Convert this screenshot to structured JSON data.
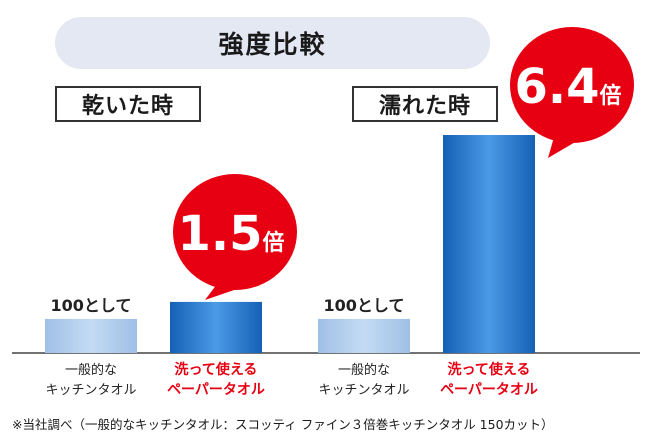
{
  "title": "強度比較",
  "footnote": "※当社調べ（一般的なキッチンタオル：スコッティ ファイン３倍巻キッチンタオル 150カット）",
  "colors": {
    "generic": "#a9c6e8",
    "product": "#1c6fc4",
    "callout": "#e60012",
    "callout_text": "#ffffff",
    "product_label": "#e60012"
  },
  "chart_data": {
    "type": "bar",
    "groups": [
      {
        "label": "乾いた時",
        "bars": [
          {
            "category": [
              "一般的な",
              "キッチンタオル"
            ],
            "value": 100,
            "label": "100として",
            "highlight": false
          },
          {
            "category": [
              "洗って使える",
              "ペーパータオル"
            ],
            "value": 150,
            "label": "",
            "highlight": true
          }
        ],
        "callout": {
          "number": "1.5",
          "unit": "倍"
        }
      },
      {
        "label": "濡れた時",
        "bars": [
          {
            "category": [
              "一般的な",
              "キッチンタオル"
            ],
            "value": 100,
            "label": "100として",
            "highlight": false
          },
          {
            "category": [
              "洗って使える",
              "ペーパータオル"
            ],
            "value": 640,
            "label": "",
            "highlight": true
          }
        ],
        "callout": {
          "number": "6.4",
          "unit": "倍"
        }
      }
    ]
  }
}
